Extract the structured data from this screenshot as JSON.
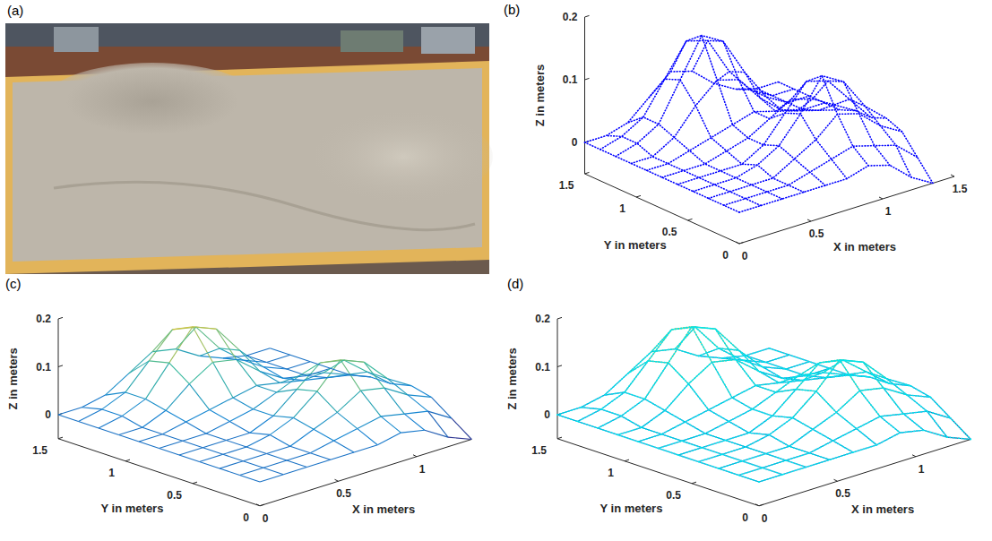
{
  "photo": {
    "panel": "(a)"
  },
  "chart_data": [
    {
      "panel": "(b)",
      "type": "scatter3d",
      "color": "#0000ff",
      "xlabel": "X in meters",
      "ylabel": "Y in meters",
      "zlabel": "Z in meters",
      "x": [
        0,
        0.15,
        0.3,
        0.45,
        0.6,
        0.75,
        0.9,
        1.05,
        1.2,
        1.35
      ],
      "y": [
        0,
        0.15,
        0.3,
        0.45,
        0.6,
        0.75,
        0.9,
        1.05,
        1.2,
        1.35,
        1.5
      ],
      "z": [
        [
          0,
          0,
          0,
          0,
          0,
          0,
          0.01,
          0,
          -0.03,
          -0.05
        ],
        [
          0,
          0,
          0,
          0,
          0.01,
          0.02,
          0.03,
          0.02,
          0.01,
          -0.02
        ],
        [
          0,
          0,
          0,
          0,
          0.02,
          0.04,
          0.07,
          0.06,
          0.03,
          0.01
        ],
        [
          0,
          0,
          0,
          0.01,
          0.03,
          0.07,
          0.12,
          0.1,
          0.05,
          0.02
        ],
        [
          0,
          0,
          0,
          0,
          0.02,
          0.06,
          0.1,
          0.09,
          0.05,
          0.01
        ],
        [
          0,
          0,
          0,
          0.01,
          0.02,
          0.04,
          0.06,
          0.05,
          0.03,
          0.01
        ],
        [
          0,
          0,
          0.01,
          0.02,
          0.03,
          0.04,
          0.03,
          0.02,
          0.01,
          0
        ],
        [
          0,
          0,
          0.02,
          0.06,
          0.09,
          0.08,
          0.04,
          0.01,
          0,
          0
        ],
        [
          0,
          0.01,
          0.03,
          0.09,
          0.15,
          0.13,
          0.07,
          0.02,
          0,
          0
        ],
        [
          0,
          0.01,
          0.03,
          0.08,
          0.13,
          0.12,
          0.06,
          0.02,
          0,
          0
        ],
        [
          0,
          0,
          0.01,
          0.04,
          0.07,
          0.06,
          0.03,
          0.01,
          0,
          0
        ]
      ],
      "xlim": [
        0,
        1.5
      ],
      "ylim": [
        0,
        1.5
      ],
      "zlim": [
        -0.05,
        0.2
      ],
      "xticks": [
        0,
        0.5,
        1,
        1.5
      ],
      "yticks": [
        0,
        0.5,
        1,
        1.5
      ],
      "zticks": [
        0,
        0.1,
        0.2
      ]
    },
    {
      "panel": "(c)",
      "type": "surface",
      "xlabel": "X in meters",
      "ylabel": "Y in meters",
      "zlabel": "Z in meters",
      "x": [
        0,
        0.15,
        0.3,
        0.45,
        0.6,
        0.75,
        0.9,
        1.05,
        1.2,
        1.35
      ],
      "y": [
        0,
        0.15,
        0.3,
        0.45,
        0.6,
        0.75,
        0.9,
        1.05,
        1.2,
        1.35,
        1.5
      ],
      "z": [
        [
          0,
          0,
          0,
          0,
          0,
          0,
          0.01,
          0,
          -0.03,
          -0.05
        ],
        [
          0,
          0,
          0,
          0,
          0.01,
          0.02,
          0.03,
          0.02,
          0.01,
          -0.02
        ],
        [
          0,
          0,
          0,
          0,
          0.02,
          0.04,
          0.07,
          0.06,
          0.03,
          0.01
        ],
        [
          0,
          0,
          0,
          0.01,
          0.03,
          0.07,
          0.12,
          0.1,
          0.05,
          0.02
        ],
        [
          0,
          0,
          0,
          0,
          0.02,
          0.06,
          0.1,
          0.09,
          0.05,
          0.01
        ],
        [
          0,
          0,
          0,
          0.01,
          0.02,
          0.04,
          0.06,
          0.05,
          0.03,
          0.01
        ],
        [
          0,
          0,
          0.01,
          0.02,
          0.03,
          0.04,
          0.03,
          0.02,
          0.01,
          0
        ],
        [
          0,
          0,
          0.02,
          0.06,
          0.09,
          0.08,
          0.04,
          0.01,
          0,
          0
        ],
        [
          0,
          0.01,
          0.03,
          0.09,
          0.15,
          0.13,
          0.07,
          0.02,
          0,
          0
        ],
        [
          0,
          0.01,
          0.03,
          0.08,
          0.13,
          0.12,
          0.06,
          0.02,
          0,
          0
        ],
        [
          0,
          0,
          0.01,
          0.04,
          0.07,
          0.06,
          0.03,
          0.01,
          0,
          0
        ]
      ],
      "xlim": [
        0,
        1.35
      ],
      "ylim": [
        0,
        1.5
      ],
      "zlim": [
        -0.05,
        0.2
      ],
      "xticks": [
        0,
        0.5,
        1
      ],
      "yticks": [
        0,
        0.5,
        1,
        1.5
      ],
      "zticks": [
        0,
        0.1,
        0.2
      ]
    },
    {
      "panel": "(d)",
      "type": "surface",
      "xlabel": "X in meters",
      "ylabel": "Y in meters",
      "zlabel": "Z in meters",
      "x": [
        0,
        0.15,
        0.3,
        0.45,
        0.6,
        0.75,
        0.9,
        1.05,
        1.2,
        1.35
      ],
      "y": [
        0,
        0.15,
        0.3,
        0.45,
        0.6,
        0.75,
        0.9,
        1.05,
        1.2,
        1.35,
        1.5
      ],
      "series": [
        {
          "type": "surface",
          "z": [
            [
              0,
              0,
              0,
              0,
              0,
              0,
              0.01,
              0,
              -0.03,
              -0.05
            ],
            [
              0,
              0,
              0,
              0,
              0.01,
              0.02,
              0.03,
              0.02,
              0.01,
              -0.02
            ],
            [
              0,
              0,
              0,
              0,
              0.02,
              0.04,
              0.07,
              0.06,
              0.03,
              0.01
            ],
            [
              0,
              0,
              0,
              0.01,
              0.03,
              0.07,
              0.12,
              0.1,
              0.05,
              0.02
            ],
            [
              0,
              0,
              0,
              0,
              0.02,
              0.06,
              0.1,
              0.09,
              0.05,
              0.01
            ],
            [
              0,
              0,
              0,
              0.01,
              0.02,
              0.04,
              0.06,
              0.05,
              0.03,
              0.01
            ],
            [
              0,
              0,
              0.01,
              0.02,
              0.03,
              0.04,
              0.03,
              0.02,
              0.01,
              0
            ],
            [
              0,
              0,
              0.02,
              0.06,
              0.09,
              0.08,
              0.04,
              0.01,
              0,
              0
            ],
            [
              0,
              0.01,
              0.03,
              0.09,
              0.15,
              0.13,
              0.07,
              0.02,
              0,
              0
            ],
            [
              0,
              0.01,
              0.03,
              0.08,
              0.13,
              0.12,
              0.06,
              0.02,
              0,
              0
            ],
            [
              0,
              0,
              0.01,
              0.04,
              0.07,
              0.06,
              0.03,
              0.01,
              0,
              0
            ]
          ]
        },
        {
          "type": "scatter3d",
          "color": "#00e5ee",
          "z": [
            [
              0,
              0,
              0,
              0,
              0,
              0,
              0.01,
              0,
              -0.03,
              -0.05
            ],
            [
              0,
              0,
              0,
              0,
              0.01,
              0.02,
              0.03,
              0.02,
              0.01,
              -0.02
            ],
            [
              0,
              0,
              0,
              0,
              0.02,
              0.04,
              0.07,
              0.06,
              0.03,
              0.01
            ],
            [
              0,
              0,
              0,
              0.01,
              0.03,
              0.07,
              0.12,
              0.1,
              0.05,
              0.02
            ],
            [
              0,
              0,
              0,
              0,
              0.02,
              0.06,
              0.1,
              0.09,
              0.05,
              0.01
            ],
            [
              0,
              0,
              0,
              0.01,
              0.02,
              0.04,
              0.06,
              0.05,
              0.03,
              0.01
            ],
            [
              0,
              0,
              0.01,
              0.02,
              0.03,
              0.04,
              0.03,
              0.02,
              0.01,
              0
            ],
            [
              0,
              0,
              0.02,
              0.06,
              0.09,
              0.08,
              0.04,
              0.01,
              0,
              0
            ],
            [
              0,
              0.01,
              0.03,
              0.09,
              0.15,
              0.13,
              0.07,
              0.02,
              0,
              0
            ],
            [
              0,
              0.01,
              0.03,
              0.08,
              0.13,
              0.12,
              0.06,
              0.02,
              0,
              0
            ],
            [
              0,
              0,
              0.01,
              0.04,
              0.07,
              0.06,
              0.03,
              0.01,
              0,
              0
            ]
          ]
        }
      ],
      "xlim": [
        0,
        1.35
      ],
      "ylim": [
        0,
        1.5
      ],
      "zlim": [
        -0.05,
        0.2
      ],
      "xticks": [
        0,
        0.5,
        1
      ],
      "yticks": [
        0,
        0.5,
        1,
        1.5
      ],
      "zticks": [
        0,
        0.1,
        0.2
      ]
    }
  ]
}
